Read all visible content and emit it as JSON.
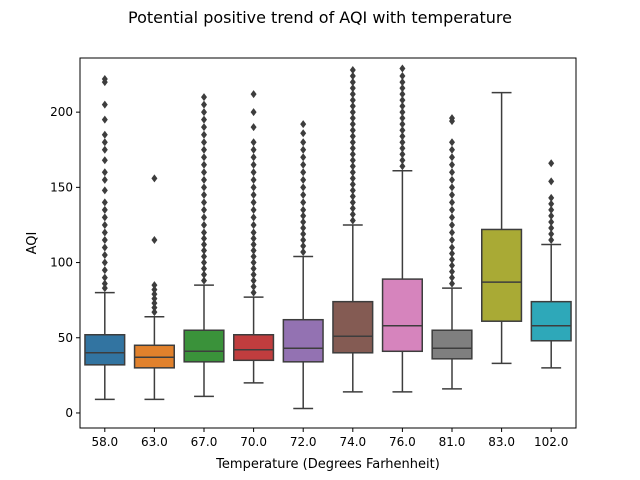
{
  "chart_data": {
    "type": "boxplot",
    "title": "Potential positive trend of AQI with temperature",
    "xlabel": "Temperature (Degrees Farhenheit)",
    "ylabel": "AQI",
    "categories": [
      "58.0",
      "63.0",
      "67.0",
      "70.0",
      "72.0",
      "74.0",
      "76.0",
      "81.0",
      "83.0",
      "102.0"
    ],
    "ylim": [
      -10,
      236
    ],
    "yticks": [
      0,
      50,
      100,
      150,
      200
    ],
    "grid": false,
    "legend": "none",
    "boxes": [
      {
        "category": "58.0",
        "color": "#3274a1",
        "whisker_low": 9,
        "q1": 32,
        "median": 40,
        "q3": 52,
        "whisker_high": 80,
        "outliers": [
          83,
          86,
          90,
          95,
          100,
          105,
          110,
          115,
          120,
          125,
          130,
          135,
          140,
          148,
          155,
          160,
          168,
          175,
          180,
          185,
          195,
          205,
          220,
          222
        ]
      },
      {
        "category": "63.0",
        "color": "#e1812c",
        "whisker_low": 9,
        "q1": 30,
        "median": 37,
        "q3": 45,
        "whisker_high": 64,
        "outliers": [
          67,
          70,
          73,
          76,
          79,
          82,
          85,
          115,
          156
        ]
      },
      {
        "category": "67.0",
        "color": "#3a923a",
        "whisker_low": 11,
        "q1": 34,
        "median": 41,
        "q3": 55,
        "whisker_high": 85,
        "outliers": [
          88,
          92,
          96,
          100,
          104,
          108,
          112,
          116,
          120,
          125,
          130,
          135,
          140,
          145,
          150,
          155,
          160,
          165,
          170,
          175,
          180,
          185,
          190,
          195,
          200,
          205,
          210
        ]
      },
      {
        "category": "70.0",
        "color": "#c03d3e",
        "whisker_low": 20,
        "q1": 35,
        "median": 42,
        "q3": 52,
        "whisker_high": 77,
        "outliers": [
          80,
          84,
          88,
          92,
          96,
          100,
          104,
          108,
          112,
          116,
          120,
          125,
          130,
          135,
          140,
          145,
          150,
          155,
          160,
          165,
          170,
          175,
          180,
          190,
          200,
          212
        ]
      },
      {
        "category": "72.0",
        "color": "#9372b2",
        "whisker_low": 3,
        "q1": 34,
        "median": 43,
        "q3": 62,
        "whisker_high": 104,
        "outliers": [
          107,
          111,
          115,
          119,
          123,
          127,
          131,
          135,
          140,
          145,
          150,
          155,
          160,
          165,
          170,
          175,
          180,
          186,
          192
        ]
      },
      {
        "category": "74.0",
        "color": "#845b53",
        "whisker_low": 14,
        "q1": 40,
        "median": 51,
        "q3": 74,
        "whisker_high": 125,
        "outliers": [
          128,
          132,
          136,
          140,
          144,
          148,
          152,
          156,
          160,
          164,
          168,
          172,
          176,
          180,
          184,
          188,
          192,
          196,
          200,
          204,
          208,
          212,
          216,
          220,
          224,
          228
        ]
      },
      {
        "category": "76.0",
        "color": "#d684bd",
        "whisker_low": 14,
        "q1": 41,
        "median": 58,
        "q3": 89,
        "whisker_high": 161,
        "outliers": [
          164,
          168,
          172,
          176,
          180,
          184,
          188,
          192,
          196,
          200,
          204,
          208,
          212,
          216,
          220,
          224,
          229
        ]
      },
      {
        "category": "81.0",
        "color": "#7f7f7f",
        "whisker_low": 16,
        "q1": 36,
        "median": 43,
        "q3": 55,
        "whisker_high": 83,
        "outliers": [
          86,
          90,
          94,
          98,
          102,
          106,
          110,
          115,
          120,
          125,
          130,
          135,
          140,
          145,
          150,
          155,
          160,
          165,
          170,
          175,
          180,
          194,
          196
        ]
      },
      {
        "category": "83.0",
        "color": "#a9aa35",
        "whisker_low": 33,
        "q1": 61,
        "median": 87,
        "q3": 122,
        "whisker_high": 213,
        "outliers": []
      },
      {
        "category": "102.0",
        "color": "#2ea8b9",
        "whisker_low": 30,
        "q1": 48,
        "median": 58,
        "q3": 74,
        "whisker_high": 112,
        "outliers": [
          115,
          119,
          123,
          127,
          131,
          135,
          139,
          143,
          154,
          166
        ]
      }
    ]
  }
}
